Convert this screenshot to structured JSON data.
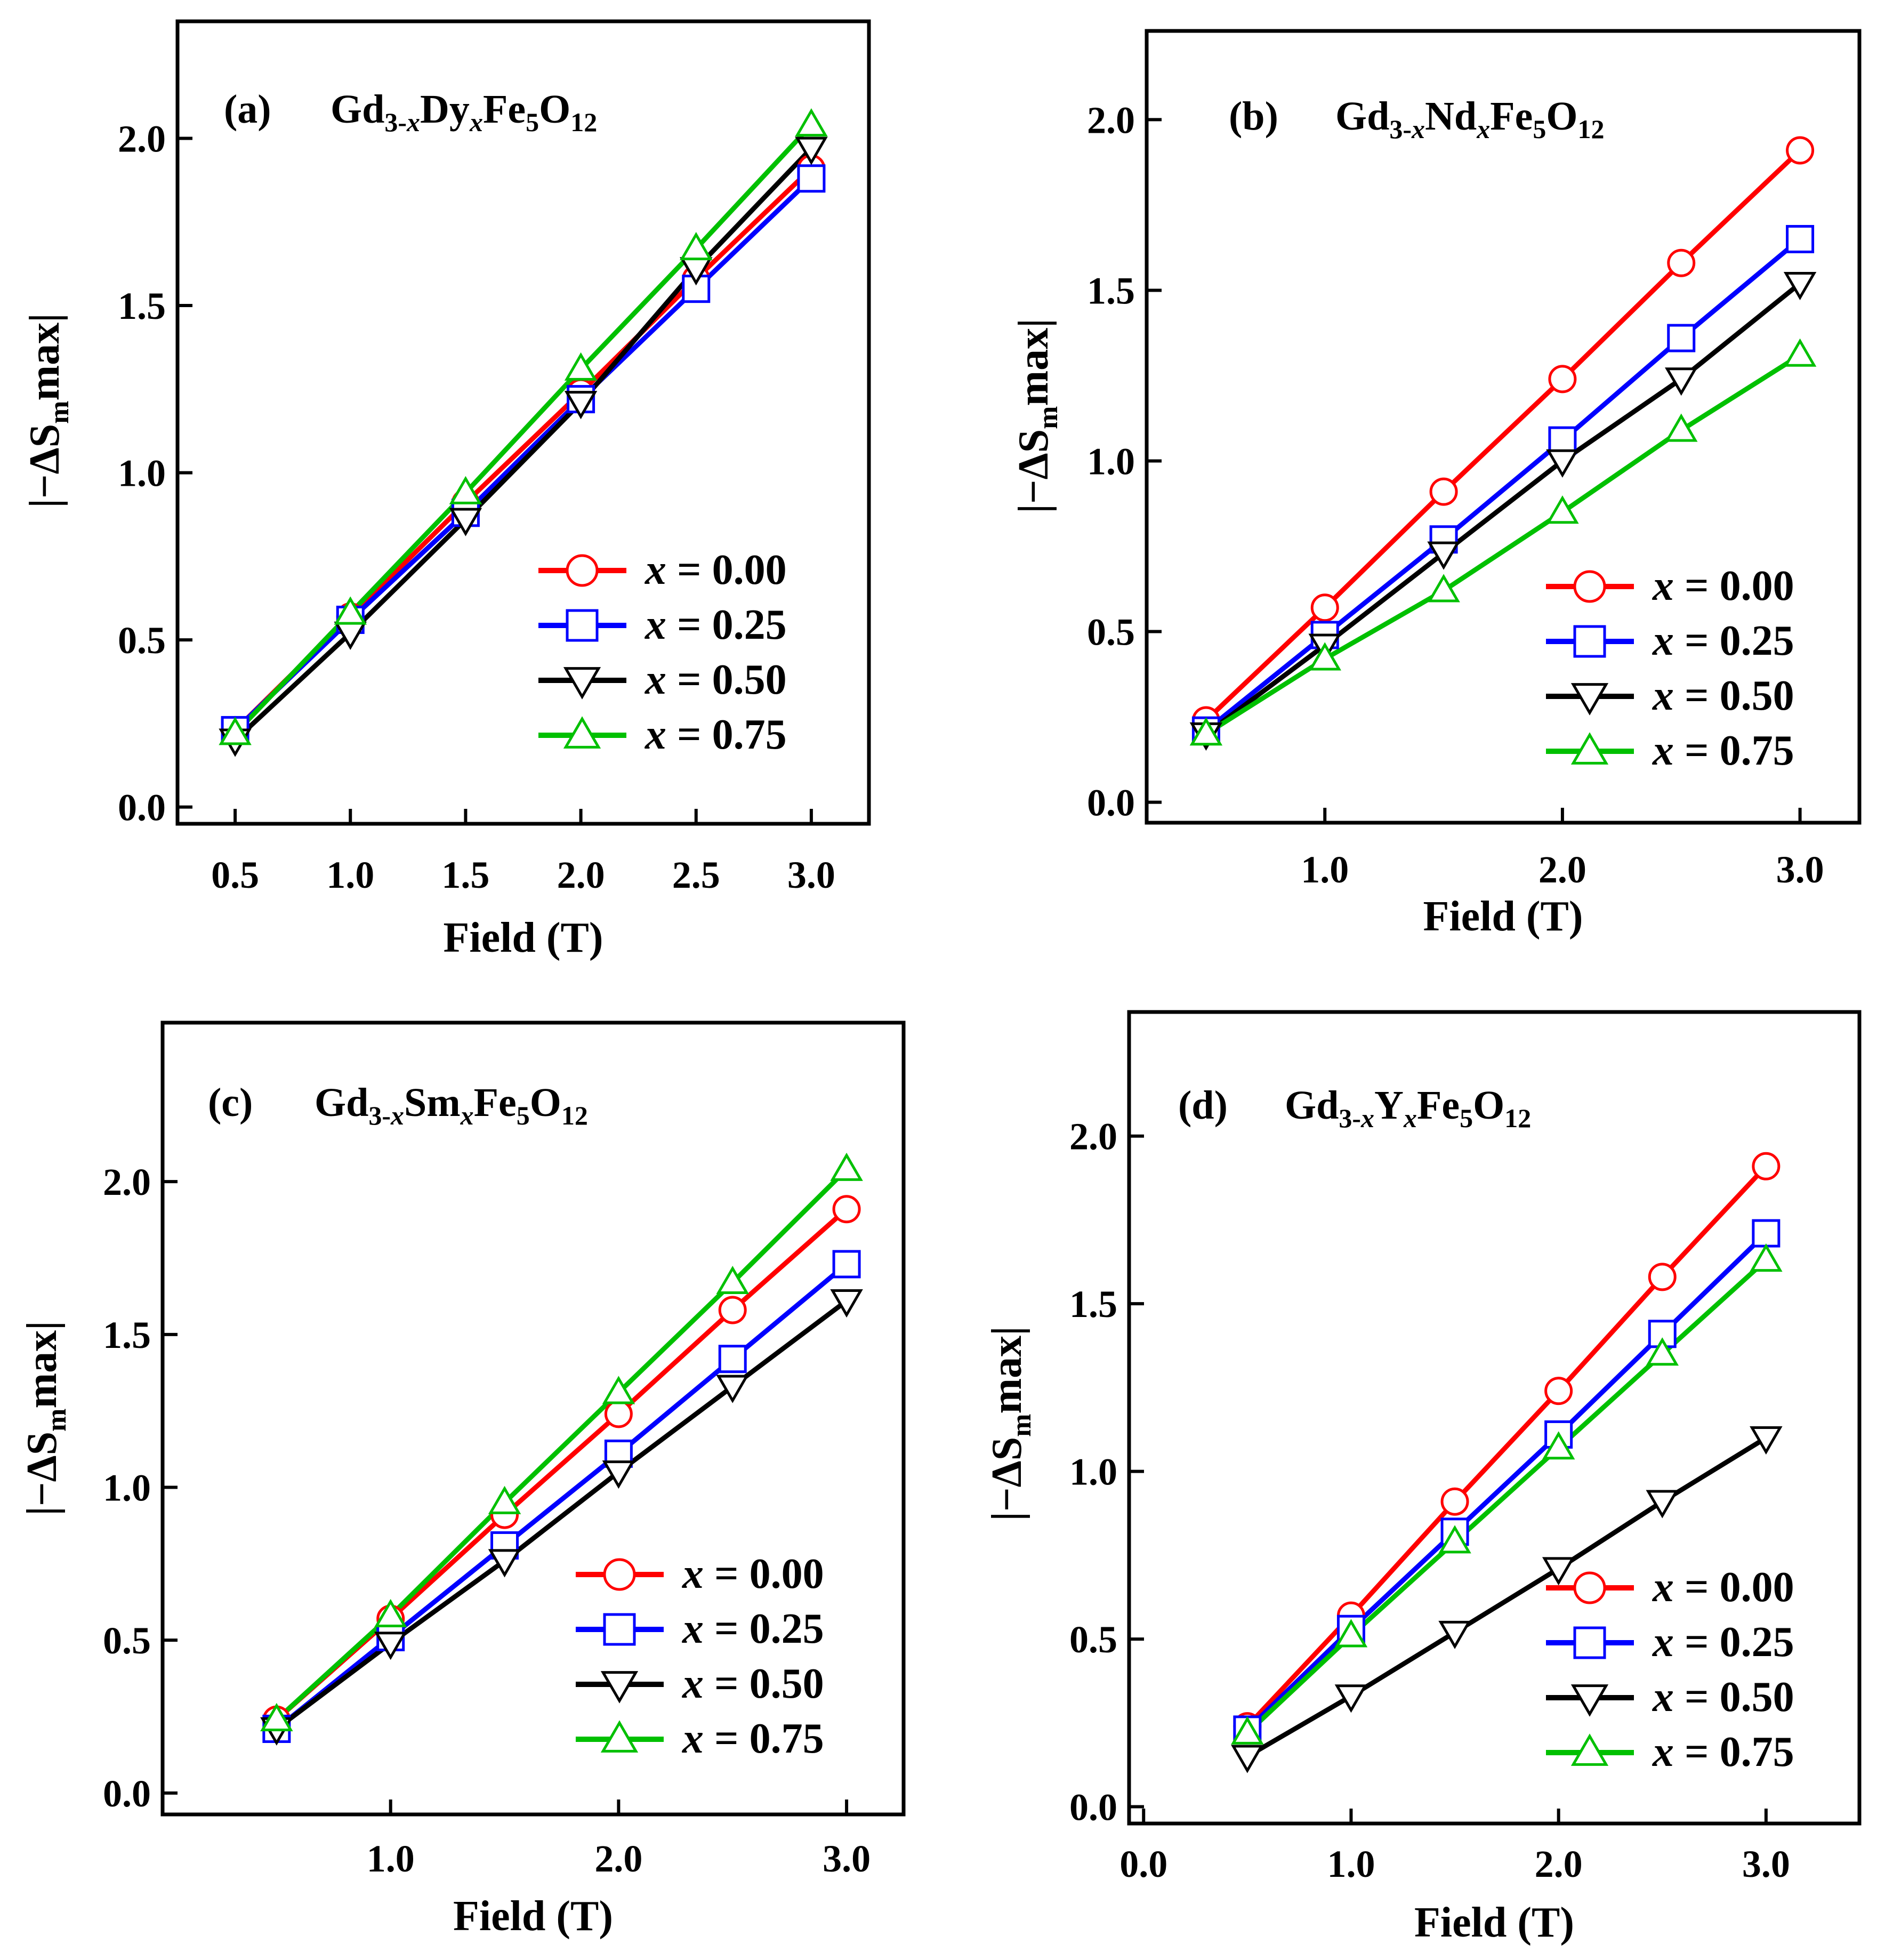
{
  "chart_data": [
    {
      "panel_label": "(a)",
      "title": {
        "base": "Gd",
        "sub1": "3-",
        "subx": "x",
        "mid": "Dy",
        "sub2x": "x",
        "tail": "Fe",
        "sub3": "5",
        "o": "O",
        "sub4": "12"
      },
      "type": "line",
      "xlabel": "Field (T)",
      "ylabel": "|−ΔS",
      "ylabel_sub": "m",
      "ylabel_tail": "max|",
      "xlim": [
        0.25,
        3.25
      ],
      "ylim": [
        -0.05,
        2.35
      ],
      "xticks": [
        0.5,
        1.0,
        1.5,
        2.0,
        2.5,
        3.0
      ],
      "xtick_labels": [
        "0.5",
        "1.0",
        "1.5",
        "2.0",
        "2.5",
        "3.0"
      ],
      "yticks": [
        0.0,
        0.5,
        1.0,
        1.5,
        2.0
      ],
      "ytick_labels": [
        "0.0",
        "0.5",
        "1.0",
        "1.5",
        "2.0"
      ],
      "x": [
        0.5,
        1.0,
        1.5,
        2.0,
        2.5,
        3.0
      ],
      "series": [
        {
          "name": "x = 0.00",
          "marker": "circle",
          "color": "#ff0000",
          "values": [
            0.23,
            0.57,
            0.91,
            1.24,
            1.58,
            1.91
          ]
        },
        {
          "name": "x = 0.25",
          "marker": "square",
          "color": "#0000ff",
          "values": [
            0.23,
            0.56,
            0.88,
            1.22,
            1.55,
            1.88
          ]
        },
        {
          "name": "x = 0.50",
          "marker": "triangle-down",
          "color": "#000000",
          "values": [
            0.2,
            0.52,
            0.86,
            1.21,
            1.61,
            1.97
          ]
        },
        {
          "name": "x = 0.75",
          "marker": "triangle-up",
          "color": "#00c000",
          "values": [
            0.22,
            0.58,
            0.94,
            1.31,
            1.67,
            2.04
          ]
        }
      ],
      "legend": "lower-right",
      "legend_prefix": "x",
      "legend_values": [
        "= 0.00",
        "= 0.25",
        "= 0.50",
        "= 0.75"
      ]
    },
    {
      "panel_label": "(b)",
      "title": {
        "base": "Gd",
        "sub1": "3-",
        "subx": "x",
        "mid": "Nd",
        "sub2x": "x",
        "tail": "Fe",
        "sub3": "5",
        "o": "O",
        "sub4": "12"
      },
      "type": "line",
      "xlabel": "Field (T)",
      "ylabel": "|−ΔS",
      "ylabel_sub": "m",
      "ylabel_tail": "max|",
      "xlim": [
        0.25,
        3.25
      ],
      "ylim": [
        -0.06,
        2.26
      ],
      "xticks": [
        1.0,
        2.0,
        3.0
      ],
      "xtick_labels": [
        "1.0",
        "2.0",
        "3.0"
      ],
      "yticks": [
        0.0,
        0.5,
        1.0,
        1.5,
        2.0
      ],
      "ytick_labels": [
        "0.0",
        "0.5",
        "1.0",
        "1.5",
        "2.0"
      ],
      "x": [
        0.5,
        1.0,
        1.5,
        2.0,
        2.5,
        3.0
      ],
      "series": [
        {
          "name": "x = 0.00",
          "marker": "circle",
          "color": "#ff0000",
          "values": [
            0.24,
            0.57,
            0.91,
            1.24,
            1.58,
            1.91
          ]
        },
        {
          "name": "x = 0.25",
          "marker": "square",
          "color": "#0000ff",
          "values": [
            0.21,
            0.49,
            0.77,
            1.06,
            1.36,
            1.65
          ]
        },
        {
          "name": "x = 0.50",
          "marker": "triangle-down",
          "color": "#000000",
          "values": [
            0.2,
            0.46,
            0.73,
            1.0,
            1.24,
            1.52
          ]
        },
        {
          "name": "x = 0.75",
          "marker": "triangle-up",
          "color": "#00c000",
          "values": [
            0.2,
            0.42,
            0.62,
            0.85,
            1.09,
            1.31
          ]
        }
      ],
      "legend": "lower-right",
      "legend_prefix": "x",
      "legend_values": [
        "= 0.00",
        "= 0.25",
        "= 0.50",
        "= 0.75"
      ]
    },
    {
      "panel_label": "(c)",
      "title": {
        "base": "Gd",
        "sub1": "3-",
        "subx": "x",
        "mid": "Sm",
        "sub2x": "x",
        "tail": "Fe",
        "sub3": "5",
        "o": "O",
        "sub4": "12"
      },
      "type": "line",
      "xlabel": "Field (T)",
      "ylabel": "|−ΔS",
      "ylabel_sub": "m",
      "ylabel_tail": "max|",
      "xlim": [
        0.0,
        3.25
      ],
      "ylim": [
        -0.07,
        2.52
      ],
      "xticks": [
        1.0,
        2.0,
        3.0
      ],
      "xtick_labels": [
        "1.0",
        "2.0",
        "3.0"
      ],
      "yticks": [
        0.0,
        0.5,
        1.0,
        1.5,
        2.0
      ],
      "ytick_labels": [
        "0.0",
        "0.5",
        "1.0",
        "1.5",
        "2.0"
      ],
      "x": [
        0.5,
        1.0,
        1.5,
        2.0,
        2.5,
        3.0
      ],
      "series": [
        {
          "name": "x = 0.00",
          "marker": "circle",
          "color": "#ff0000",
          "values": [
            0.24,
            0.57,
            0.91,
            1.24,
            1.58,
            1.91
          ]
        },
        {
          "name": "x = 0.25",
          "marker": "square",
          "color": "#0000ff",
          "values": [
            0.21,
            0.51,
            0.81,
            1.11,
            1.42,
            1.73
          ]
        },
        {
          "name": "x = 0.50",
          "marker": "triangle-down",
          "color": "#000000",
          "values": [
            0.21,
            0.49,
            0.76,
            1.05,
            1.33,
            1.61
          ]
        },
        {
          "name": "x = 0.75",
          "marker": "triangle-up",
          "color": "#00c000",
          "values": [
            0.24,
            0.58,
            0.95,
            1.31,
            1.67,
            2.04
          ]
        }
      ],
      "legend": "lower-right",
      "legend_prefix": "x",
      "legend_values": [
        "= 0.00",
        "= 0.25",
        "= 0.50",
        "= 0.75"
      ]
    },
    {
      "panel_label": "(d)",
      "title": {
        "base": "Gd",
        "sub1": "3-",
        "subx": "x",
        "mid": "Y",
        "sub2x": "x",
        "tail": "Fe",
        "sub3": "5",
        "o": "O",
        "sub4": "12"
      },
      "type": "line",
      "xlabel": "Field (T)",
      "ylabel": "|−ΔS",
      "ylabel_sub": "m",
      "ylabel_tail": "max|",
      "xlim": [
        -0.07,
        3.45
      ],
      "ylim": [
        -0.05,
        2.37
      ],
      "xticks": [
        0.0,
        1.0,
        2.0,
        3.0
      ],
      "xtick_labels": [
        "0.0",
        "1.0",
        "2.0",
        "3.0"
      ],
      "yticks": [
        0.0,
        0.5,
        1.0,
        1.5,
        2.0
      ],
      "ytick_labels": [
        "0.0",
        "0.5",
        "1.0",
        "1.5",
        "2.0"
      ],
      "x": [
        0.5,
        1.0,
        1.5,
        2.0,
        2.5,
        3.0
      ],
      "series": [
        {
          "name": "x = 0.00",
          "marker": "circle",
          "color": "#ff0000",
          "values": [
            0.24,
            0.57,
            0.91,
            1.24,
            1.58,
            1.91
          ]
        },
        {
          "name": "x = 0.25",
          "marker": "square",
          "color": "#0000ff",
          "values": [
            0.23,
            0.53,
            0.82,
            1.11,
            1.41,
            1.71
          ]
        },
        {
          "name": "x = 0.50",
          "marker": "triangle-down",
          "color": "#000000",
          "values": [
            0.15,
            0.33,
            0.52,
            0.71,
            0.91,
            1.1
          ]
        },
        {
          "name": "x = 0.75",
          "marker": "triangle-up",
          "color": "#00c000",
          "values": [
            0.22,
            0.51,
            0.79,
            1.07,
            1.35,
            1.63
          ]
        }
      ],
      "legend": "lower-right",
      "legend_prefix": "x",
      "legend_values": [
        "= 0.00",
        "= 0.25",
        "= 0.50",
        "= 0.75"
      ]
    }
  ]
}
